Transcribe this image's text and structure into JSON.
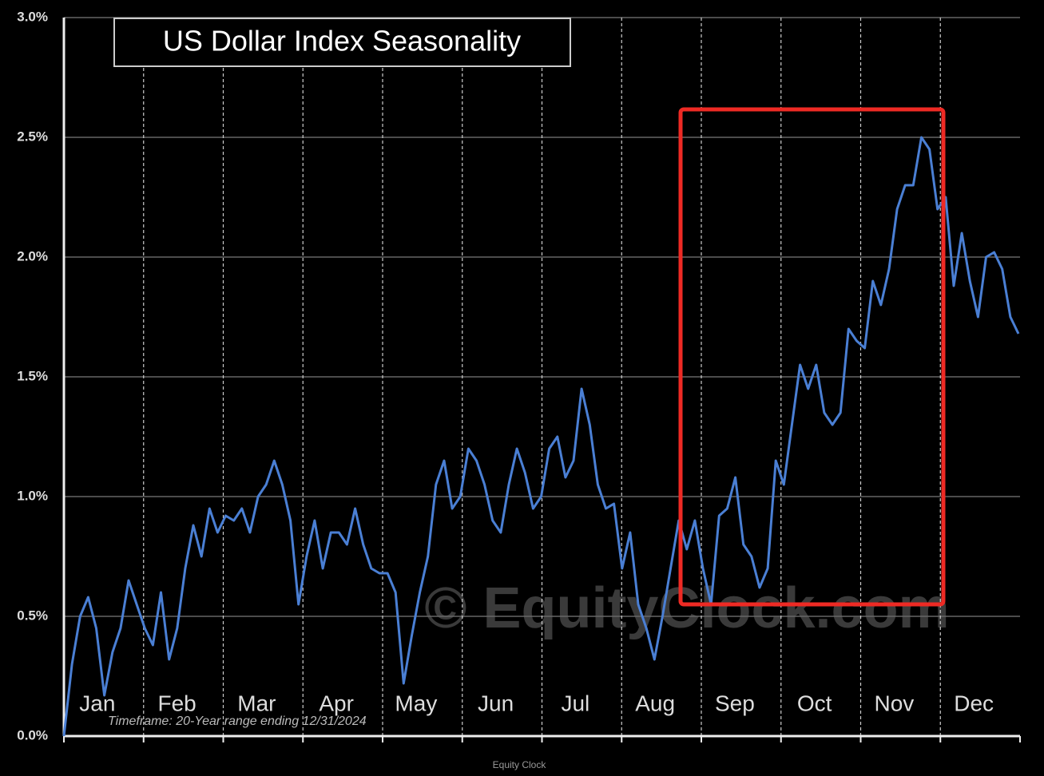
{
  "chart_data": {
    "type": "line",
    "title": "US Dollar Index  Seasonality",
    "months": [
      "Jan",
      "Feb",
      "Mar",
      "Apr",
      "May",
      "Jun",
      "Jul",
      "Aug",
      "Sep",
      "Oct",
      "Nov",
      "Dec"
    ],
    "series": [
      {
        "name": "US Dollar Index",
        "color": "#4a7fd4",
        "values": [
          0.0,
          0.3,
          0.5,
          0.58,
          0.45,
          0.17,
          0.35,
          0.45,
          0.65,
          0.55,
          0.45,
          0.38,
          0.6,
          0.32,
          0.45,
          0.7,
          0.88,
          0.75,
          0.95,
          0.85,
          0.92,
          0.9,
          0.95,
          0.85,
          1.0,
          1.05,
          1.15,
          1.05,
          0.9,
          0.55,
          0.75,
          0.9,
          0.7,
          0.85,
          0.85,
          0.8,
          0.95,
          0.8,
          0.7,
          0.68,
          0.68,
          0.6,
          0.22,
          0.42,
          0.6,
          0.75,
          1.05,
          1.15,
          0.95,
          1.0,
          1.2,
          1.15,
          1.05,
          0.9,
          0.85,
          1.05,
          1.2,
          1.1,
          0.95,
          1.0,
          1.2,
          1.25,
          1.08,
          1.15,
          1.45,
          1.3,
          1.05,
          0.95,
          0.97,
          0.7,
          0.85,
          0.55,
          0.45,
          0.32,
          0.5,
          0.7,
          0.9,
          0.78,
          0.9,
          0.7,
          0.55,
          0.92,
          0.95,
          1.08,
          0.8,
          0.75,
          0.62,
          0.7,
          1.15,
          1.05,
          1.3,
          1.55,
          1.45,
          1.55,
          1.35,
          1.3,
          1.35,
          1.7,
          1.65,
          1.62,
          1.9,
          1.8,
          1.95,
          2.2,
          2.3,
          2.3,
          2.5,
          2.45,
          2.2,
          2.25,
          1.88,
          2.1,
          1.9,
          1.75,
          2.0,
          2.02,
          1.95,
          1.75,
          1.68
        ]
      }
    ],
    "ylim": [
      0,
      3
    ],
    "yticks": [
      {
        "value": 0,
        "label": "0.0%"
      },
      {
        "value": 0.5,
        "label": "0.5%"
      },
      {
        "value": 1,
        "label": "1.0%"
      },
      {
        "value": 1.5,
        "label": "1.5%"
      },
      {
        "value": 2,
        "label": "2.0%"
      },
      {
        "value": 2.5,
        "label": "2.5%"
      },
      {
        "value": 3,
        "label": "3.0%"
      }
    ],
    "grid": true,
    "note": "Timeframe:  20-Year range ending 12/31/2024",
    "watermark": "© EquityClock.com",
    "footer": "Equity Clock"
  }
}
